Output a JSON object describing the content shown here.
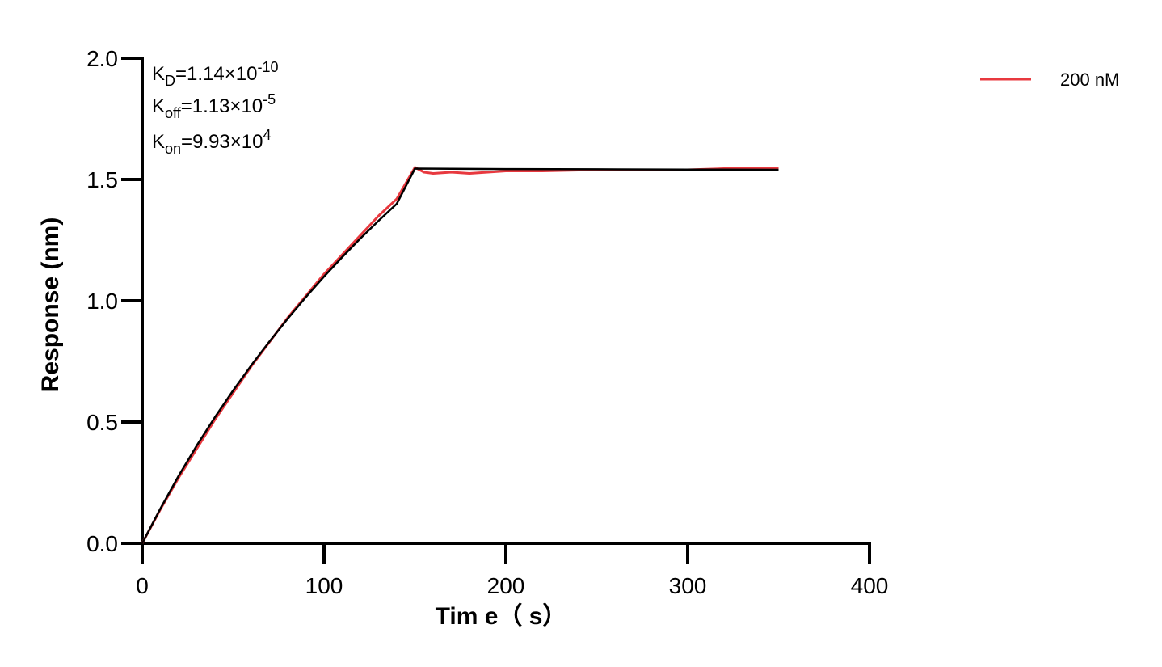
{
  "chart_data": {
    "type": "line",
    "xlabel": "Tim e（ s）",
    "ylabel": "Response (nm)",
    "xlim": [
      0,
      400
    ],
    "ylim": [
      0,
      2.0
    ],
    "x_ticks": [
      "0",
      "100",
      "200",
      "300",
      "400"
    ],
    "y_ticks": [
      "0.0",
      "0.5",
      "1.0",
      "1.5",
      "2.0"
    ],
    "grid": false,
    "legend_position": "top-right",
    "annotations": [
      {
        "main": "K",
        "sub": "D",
        "rest": "=1.14×10",
        "sup": "-10"
      },
      {
        "main": "K",
        "sub": "off",
        "rest": "=1.13×10",
        "sup": "-5"
      },
      {
        "main": "K",
        "sub": "on",
        "rest": "=9.93×10",
        "sup": "4"
      }
    ],
    "series": [
      {
        "name": "200 nM",
        "color": "#e8393f",
        "x": [
          0,
          10,
          20,
          30,
          40,
          50,
          60,
          70,
          80,
          90,
          100,
          110,
          120,
          130,
          140,
          150,
          155,
          160,
          170,
          180,
          200,
          220,
          250,
          280,
          300,
          320,
          340,
          350
        ],
        "y": [
          0.0,
          0.14,
          0.27,
          0.39,
          0.51,
          0.62,
          0.73,
          0.83,
          0.93,
          1.02,
          1.11,
          1.19,
          1.27,
          1.35,
          1.42,
          1.55,
          1.53,
          1.525,
          1.53,
          1.525,
          1.535,
          1.535,
          1.54,
          1.54,
          1.54,
          1.545,
          1.545,
          1.545
        ]
      },
      {
        "name": "",
        "color": "#000000",
        "x": [
          0,
          10,
          20,
          30,
          40,
          50,
          60,
          70,
          80,
          90,
          100,
          110,
          120,
          130,
          140,
          150,
          200,
          250,
          300,
          350
        ],
        "y": [
          0.0,
          0.143,
          0.278,
          0.403,
          0.52,
          0.63,
          0.734,
          0.832,
          0.926,
          1.015,
          1.1,
          1.18,
          1.257,
          1.33,
          1.4,
          1.545,
          1.543,
          1.542,
          1.541,
          1.54
        ]
      }
    ]
  }
}
